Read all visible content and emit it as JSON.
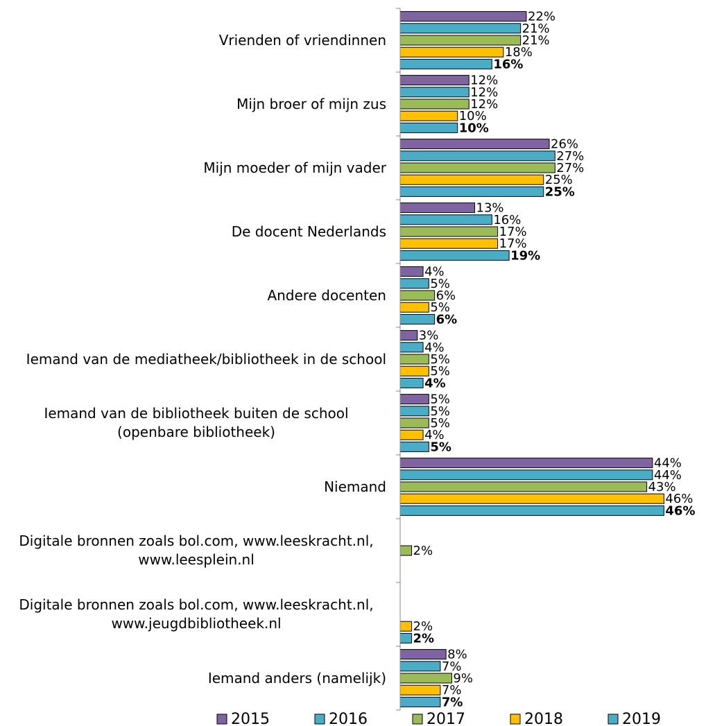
{
  "chart_data": {
    "type": "barh",
    "categories": [
      "Vrienden of vriendinnen",
      "Mijn broer of mijn zus",
      "Mijn moeder of mijn vader",
      "De docent Nederlands",
      "Andere docenten",
      "Iemand van de mediatheek/bibliotheek in de school",
      "Iemand van de bibliotheek buiten de school (openbare bibliotheek)",
      "Niemand",
      "Digitale bronnen zoals bol.com, www.leeskracht.nl, www.leesplein.nl",
      "Digitale bronnen zoals bol.com, www.leeskracht.nl, www.jeugdbibliotheek.nl",
      "Iemand anders (namelijk)"
    ],
    "series": [
      {
        "name": "2015",
        "color": "#8064a2",
        "values": [
          22,
          12,
          26,
          13,
          4,
          3,
          5,
          44,
          null,
          null,
          8
        ],
        "value_labels": [
          "22%",
          "12%",
          "26%",
          "13%",
          "4%",
          "3%",
          "5%",
          "44%",
          null,
          null,
          "8%"
        ]
      },
      {
        "name": "2016",
        "color": "#4bacc6",
        "values": [
          21,
          12,
          27,
          16,
          5,
          4,
          5,
          44,
          null,
          null,
          7
        ],
        "value_labels": [
          "21%",
          "12%",
          "27%",
          "16%",
          "5%",
          "4%",
          "5%",
          "44%",
          null,
          null,
          "7%"
        ]
      },
      {
        "name": "2017",
        "color": "#9bbb59",
        "values": [
          21,
          12,
          27,
          17,
          6,
          5,
          5,
          43,
          2,
          null,
          9
        ],
        "value_labels": [
          "21%",
          "12%",
          "27%",
          "17%",
          "6%",
          "5%",
          "5%",
          "43%",
          "2%",
          null,
          "9%"
        ]
      },
      {
        "name": "2018",
        "color": "#ffc000",
        "values": [
          18,
          10,
          25,
          17,
          5,
          5,
          4,
          46,
          null,
          2,
          7
        ],
        "value_labels": [
          "18%",
          "10%",
          "25%",
          "17%",
          "5%",
          "5%",
          "4%",
          "46%",
          null,
          "2%",
          "7%"
        ]
      },
      {
        "name": "2019",
        "color": "#4bacc6",
        "label_bold": true,
        "values": [
          16,
          10,
          25,
          19,
          6,
          4,
          5,
          46,
          null,
          2,
          7
        ],
        "value_labels": [
          "16%",
          "10%",
          "25%",
          "19%",
          "6%",
          "4%",
          "5%",
          "46%",
          null,
          "2%",
          "7%"
        ]
      }
    ]
  }
}
